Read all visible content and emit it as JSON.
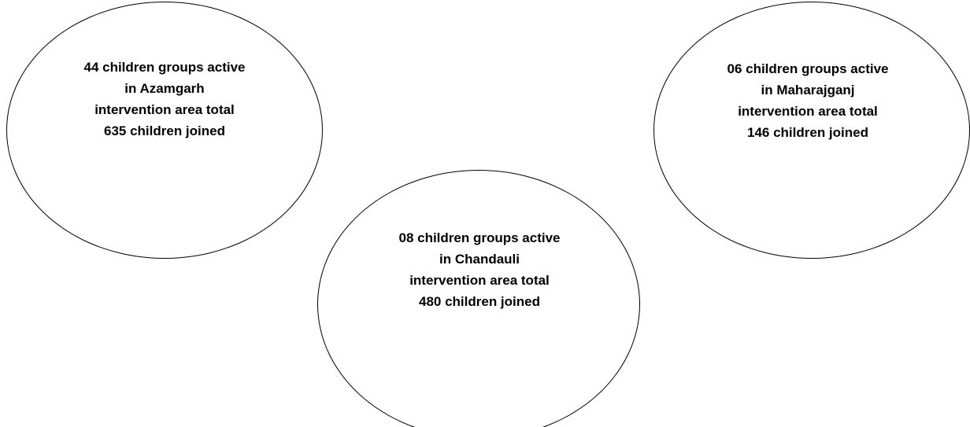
{
  "diagram": {
    "nodes": [
      {
        "id": "azamgarh",
        "lines": [
          "44 children groups active",
          "in Azamgarh",
          "intervention area total",
          "635 children joined"
        ]
      },
      {
        "id": "chandauli",
        "lines": [
          "08 children groups active",
          "in Chandauli",
          "intervention area total",
          "480 children joined"
        ]
      },
      {
        "id": "maharajganj",
        "lines": [
          "06 children groups active",
          "in Maharajganj",
          "intervention area total",
          "146 children joined"
        ]
      }
    ]
  }
}
